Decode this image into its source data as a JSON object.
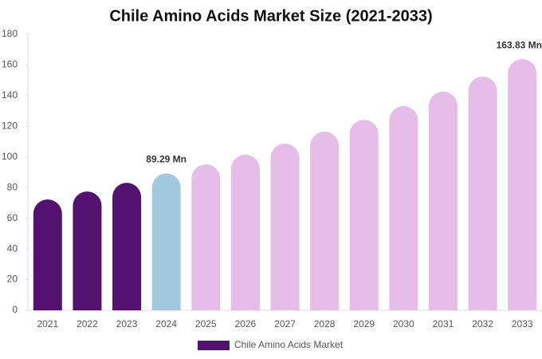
{
  "chart_data": {
    "type": "bar",
    "title": "Chile Amino Acids Market Size (2021-2033)",
    "categories": [
      "2021",
      "2022",
      "2023",
      "2024",
      "2025",
      "2026",
      "2027",
      "2028",
      "2029",
      "2030",
      "2031",
      "2032",
      "2033"
    ],
    "series": [
      {
        "name": "Chile Amino Acids Market",
        "color": "#541270",
        "values": [
          72.3,
          77.5,
          83.2,
          89.29,
          95.2,
          101.5,
          108.7,
          116.5,
          124.3,
          133.2,
          142.6,
          152.4,
          163.83
        ],
        "colors": [
          "#541270",
          "#541270",
          "#541270",
          "#a3c9de",
          "#e6bce8",
          "#e6bce8",
          "#e6bce8",
          "#e6bce8",
          "#e6bce8",
          "#e6bce8",
          "#e6bce8",
          "#e6bce8",
          "#e6bce8"
        ],
        "value_labels": [
          null,
          null,
          null,
          "89.29 Mn",
          null,
          null,
          null,
          null,
          null,
          null,
          null,
          null,
          "163.83 Mn"
        ]
      }
    ],
    "ylim": [
      0,
      180
    ],
    "yticks": [
      0,
      20,
      40,
      60,
      80,
      100,
      120,
      140,
      160,
      180
    ],
    "grid": false
  }
}
